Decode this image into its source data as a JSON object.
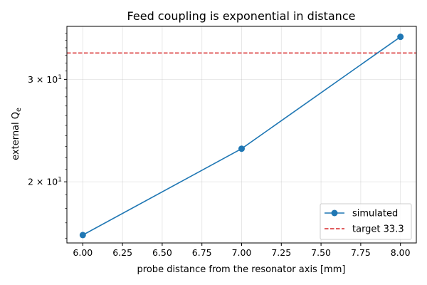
{
  "chart_data": {
    "type": "line",
    "title": "Feed coupling is exponential in distance",
    "xlabel": "probe distance from the resonator axis [mm]",
    "ylabel": "external Q",
    "ylabel_subscript": "e",
    "xlim": [
      5.9,
      8.1
    ],
    "ylim": [
      15.7,
      37.0
    ],
    "yscale": "log",
    "x_ticks": [
      6.0,
      6.25,
      6.5,
      6.75,
      7.0,
      7.25,
      7.5,
      7.75,
      8.0
    ],
    "x_tick_labels": [
      "6.00",
      "6.25",
      "6.50",
      "6.75",
      "7.00",
      "7.25",
      "7.50",
      "7.75",
      "8.00"
    ],
    "y_ticks": [
      {
        "value": 20,
        "mantissa": "2",
        "base": "10",
        "exponent": "1"
      },
      {
        "value": 30,
        "mantissa": "3",
        "base": "10",
        "exponent": "1"
      }
    ],
    "grid": true,
    "legend_position": "lower-right",
    "series": [
      {
        "name": "simulated",
        "color": "#1f77b4",
        "style": "solid",
        "marker": "circle",
        "x": [
          6.0,
          7.0,
          8.0
        ],
        "y": [
          16.2,
          22.8,
          35.5
        ]
      }
    ],
    "reference_lines": [
      {
        "name": "target 33.3",
        "orientation": "horizontal",
        "value": 33.3,
        "color": "#d62728",
        "style": "dashed"
      }
    ]
  }
}
